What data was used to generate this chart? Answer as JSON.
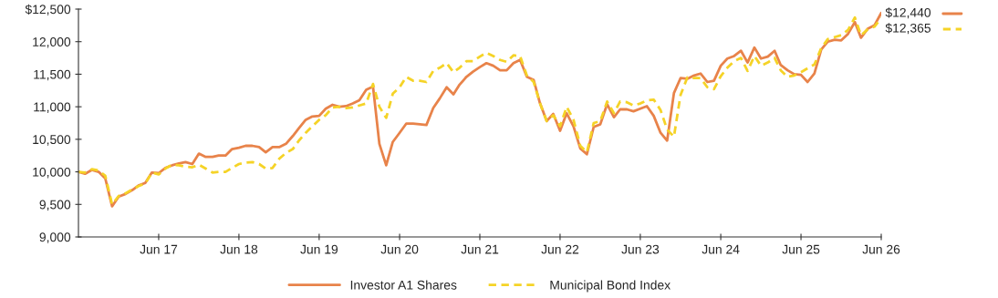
{
  "chart_data": {
    "type": "line",
    "x": [
      "2016-06",
      "2016-07",
      "2016-08",
      "2016-09",
      "2016-10",
      "2016-11",
      "2016-12",
      "2017-01",
      "2017-02",
      "2017-03",
      "2017-04",
      "2017-05",
      "2017-06",
      "2017-07",
      "2017-08",
      "2017-09",
      "2017-10",
      "2017-11",
      "2017-12",
      "2018-01",
      "2018-02",
      "2018-03",
      "2018-04",
      "2018-05",
      "2018-06",
      "2018-07",
      "2018-08",
      "2018-09",
      "2018-10",
      "2018-11",
      "2018-12",
      "2019-01",
      "2019-02",
      "2019-03",
      "2019-04",
      "2019-05",
      "2019-06",
      "2019-07",
      "2019-08",
      "2019-09",
      "2019-10",
      "2019-11",
      "2019-12",
      "2020-01",
      "2020-02",
      "2020-03",
      "2020-04",
      "2020-05",
      "2020-06",
      "2020-07",
      "2020-08",
      "2020-09",
      "2020-10",
      "2020-11",
      "2020-12",
      "2021-01",
      "2021-02",
      "2021-03",
      "2021-04",
      "2021-05",
      "2021-06",
      "2021-07",
      "2021-08",
      "2021-09",
      "2021-10",
      "2021-11",
      "2021-12",
      "2022-01",
      "2022-02",
      "2022-03",
      "2022-04",
      "2022-05",
      "2022-06",
      "2022-07",
      "2022-08",
      "2022-09",
      "2022-10",
      "2022-11",
      "2022-12",
      "2023-01",
      "2023-02",
      "2023-03",
      "2023-04",
      "2023-05",
      "2023-06",
      "2023-07",
      "2023-08",
      "2023-09",
      "2023-10",
      "2023-11",
      "2023-12",
      "2024-01",
      "2024-02",
      "2024-03",
      "2024-04",
      "2024-05",
      "2024-06",
      "2024-07",
      "2024-08",
      "2024-09",
      "2024-10",
      "2024-11",
      "2024-12",
      "2025-01",
      "2025-02",
      "2025-03",
      "2025-04",
      "2025-05",
      "2025-06",
      "2025-07",
      "2025-08",
      "2025-09",
      "2025-10",
      "2025-11",
      "2025-12",
      "2026-01",
      "2026-02",
      "2026-03",
      "2026-04",
      "2026-05",
      "2026-06"
    ],
    "series": [
      {
        "name": "Investor A1 Shares",
        "color": "#e8834a",
        "line_style": "solid",
        "values": [
          10000,
          9970,
          10030,
          10000,
          9900,
          9470,
          9620,
          9660,
          9720,
          9790,
          9830,
          9990,
          9980,
          10060,
          10100,
          10130,
          10150,
          10120,
          10280,
          10230,
          10230,
          10250,
          10250,
          10350,
          10370,
          10400,
          10400,
          10380,
          10300,
          10380,
          10380,
          10430,
          10550,
          10670,
          10800,
          10850,
          10860,
          10970,
          11030,
          11000,
          11010,
          11050,
          11100,
          11260,
          11310,
          10430,
          10100,
          10460,
          10600,
          10740,
          10740,
          10730,
          10720,
          10980,
          11130,
          11300,
          11190,
          11340,
          11460,
          11540,
          11610,
          11670,
          11630,
          11560,
          11560,
          11670,
          11720,
          11460,
          11410,
          11060,
          10780,
          10890,
          10630,
          10900,
          10700,
          10360,
          10270,
          10690,
          10730,
          11040,
          10840,
          10960,
          10960,
          10930,
          10970,
          11010,
          10860,
          10600,
          10480,
          11210,
          11440,
          11430,
          11480,
          11510,
          11380,
          11400,
          11630,
          11740,
          11780,
          11860,
          11680,
          11910,
          11740,
          11770,
          11860,
          11640,
          11560,
          11500,
          11490,
          11380,
          11510,
          11880,
          12000,
          12030,
          12020,
          12120,
          12300,
          12060,
          12200,
          12250,
          12440
        ]
      },
      {
        "name": "Municipal Bond Index",
        "color": "#f5d327",
        "line_style": "dashed",
        "values": [
          10000,
          9990,
          10040,
          10020,
          9940,
          9500,
          9630,
          9670,
          9730,
          9780,
          9820,
          9990,
          9960,
          10050,
          10110,
          10100,
          10080,
          10070,
          10110,
          10050,
          9990,
          10000,
          10000,
          10060,
          10120,
          10140,
          10150,
          10120,
          10050,
          10060,
          10200,
          10290,
          10350,
          10480,
          10600,
          10700,
          10800,
          10870,
          10990,
          11000,
          10980,
          10990,
          11020,
          11050,
          11350,
          11000,
          10830,
          11200,
          11300,
          11460,
          11400,
          11400,
          11380,
          11550,
          11600,
          11670,
          11530,
          11600,
          11700,
          11700,
          11770,
          11830,
          11780,
          11720,
          11690,
          11790,
          11780,
          11480,
          11380,
          11060,
          10780,
          10870,
          10700,
          11000,
          10800,
          10400,
          10300,
          10750,
          10780,
          11080,
          10900,
          11080,
          11070,
          11020,
          11050,
          11100,
          11110,
          10950,
          10650,
          10540,
          11180,
          11450,
          11440,
          11440,
          11300,
          11270,
          11470,
          11600,
          11700,
          11750,
          11550,
          11780,
          11630,
          11680,
          11750,
          11560,
          11460,
          11480,
          11530,
          11590,
          11650,
          11900,
          12040,
          12070,
          12100,
          12180,
          12370,
          12100,
          12190,
          12230,
          12365
        ]
      }
    ],
    "annotations": [
      "$12,440",
      "$12,365"
    ],
    "xlim": [
      "2016-06",
      "2026-06"
    ],
    "xticks": [
      {
        "value": "2017-06",
        "label": "Jun 17"
      },
      {
        "value": "2018-06",
        "label": "Jun 18"
      },
      {
        "value": "2019-06",
        "label": "Jun 19"
      },
      {
        "value": "2020-06",
        "label": "Jun 20"
      },
      {
        "value": "2021-06",
        "label": "Jun 21"
      },
      {
        "value": "2022-06",
        "label": "Jun 22"
      },
      {
        "value": "2023-06",
        "label": "Jun 23"
      },
      {
        "value": "2024-06",
        "label": "Jun 24"
      },
      {
        "value": "2025-06",
        "label": "Jun 25"
      },
      {
        "value": "2026-06",
        "label": "Jun 26"
      }
    ],
    "ylim": [
      9000,
      12500
    ],
    "yticks": [
      {
        "value": 9000,
        "label": "9,000"
      },
      {
        "value": 9500,
        "label": "9,500"
      },
      {
        "value": 10000,
        "label": "10,000"
      },
      {
        "value": 10500,
        "label": "10,500"
      },
      {
        "value": 11000,
        "label": "11,000"
      },
      {
        "value": 11500,
        "label": "11,500"
      },
      {
        "value": 12000,
        "label": "12,000"
      },
      {
        "value": 12500,
        "label": "$12,500"
      }
    ],
    "grid": false,
    "legend": "bottom",
    "marker": "none"
  }
}
